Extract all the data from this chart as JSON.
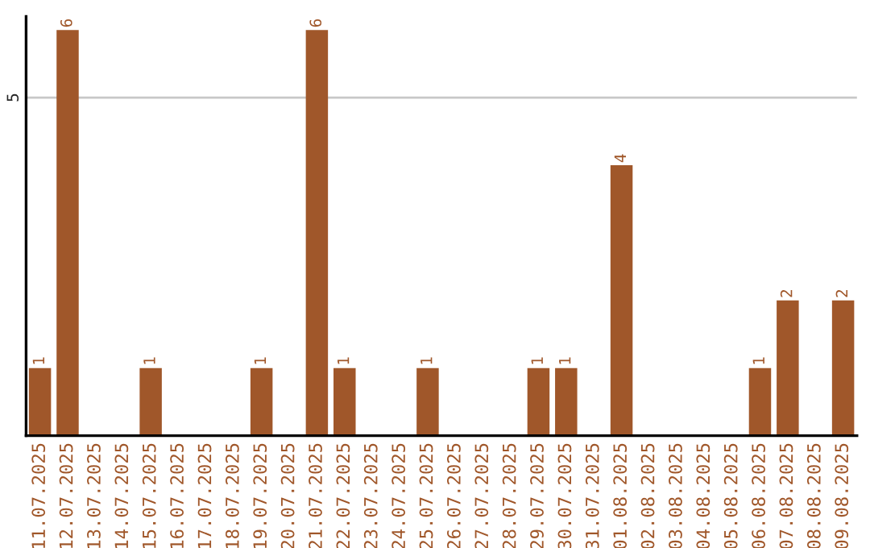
{
  "chart_data": {
    "type": "bar",
    "categories": [
      "11.07.2025",
      "12.07.2025",
      "13.07.2025",
      "14.07.2025",
      "15.07.2025",
      "16.07.2025",
      "17.07.2025",
      "18.07.2025",
      "19.07.2025",
      "20.07.2025",
      "21.07.2025",
      "22.07.2025",
      "23.07.2025",
      "24.07.2025",
      "25.07.2025",
      "26.07.2025",
      "27.07.2025",
      "28.07.2025",
      "29.07.2025",
      "30.07.2025",
      "31.07.2025",
      "01.08.2025",
      "02.08.2025",
      "03.08.2025",
      "04.08.2025",
      "05.08.2025",
      "06.08.2025",
      "07.08.2025",
      "08.08.2025",
      "09.08.2025"
    ],
    "values": [
      1,
      6,
      0,
      0,
      1,
      0,
      0,
      0,
      1,
      0,
      6,
      1,
      0,
      0,
      1,
      0,
      0,
      0,
      1,
      1,
      0,
      4,
      0,
      0,
      0,
      0,
      1,
      2,
      0,
      2
    ],
    "value_labels": [
      "1",
      "6",
      null,
      null,
      "1",
      null,
      null,
      null,
      "1",
      null,
      "6",
      "1",
      null,
      null,
      "1",
      null,
      null,
      null,
      "1",
      "1",
      null,
      "4",
      null,
      null,
      null,
      null,
      "1",
      "2",
      null,
      "2"
    ],
    "color": "#a0572a",
    "ylim": [
      0,
      6.2
    ],
    "yticks": [
      5
    ],
    "grid": "y",
    "legend": false
  }
}
